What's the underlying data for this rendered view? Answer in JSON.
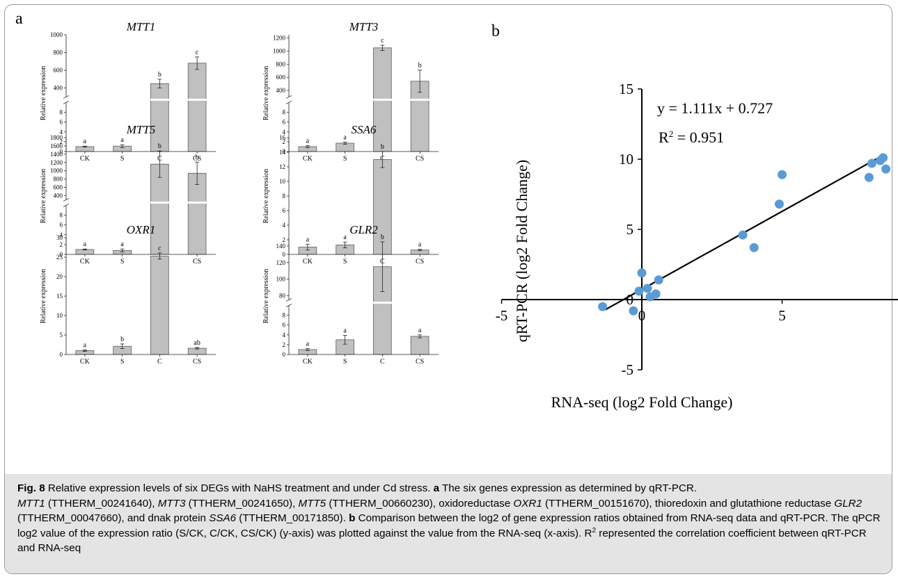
{
  "figure": {
    "panel_a_letter": "a",
    "panel_b_letter": "b"
  },
  "chart_data": [
    {
      "type": "bar",
      "title": "MTT1",
      "ylabel": "Relative expression",
      "categories": [
        "CK",
        "S",
        "C",
        "CS"
      ],
      "values": [
        1,
        1.1,
        450,
        680
      ],
      "errors": [
        0.1,
        0.3,
        50,
        70
      ],
      "letters": [
        "a",
        "a",
        "b",
        "c"
      ],
      "axis_break": true,
      "ylim_low": [
        0,
        10
      ],
      "ylim_high": [
        300,
        1000
      ],
      "yticks_low": [
        "0",
        "2",
        "4",
        "6",
        "8"
      ],
      "yticks_high": [
        "400",
        "600",
        "800",
        "1000"
      ],
      "ytick_vals_low": [
        0,
        2,
        4,
        6,
        8
      ],
      "ytick_vals_high": [
        400,
        600,
        800,
        1000
      ]
    },
    {
      "type": "bar",
      "title": "MTT3",
      "ylabel": "Relative expression",
      "categories": [
        "CK",
        "S",
        "C",
        "CS"
      ],
      "values": [
        1,
        1.7,
        1050,
        540
      ],
      "errors": [
        0.2,
        0.2,
        40,
        170
      ],
      "letters": [
        "a",
        "a",
        "c",
        "b"
      ],
      "axis_break": true,
      "ylim_low": [
        0,
        10
      ],
      "ylim_high": [
        300,
        1250
      ],
      "yticks_low": [
        "0",
        "2",
        "4",
        "6",
        "8"
      ],
      "yticks_high": [
        "400",
        "600",
        "800",
        "1000",
        "1200"
      ],
      "ytick_vals_low": [
        0,
        2,
        4,
        6,
        8
      ],
      "ytick_vals_high": [
        400,
        600,
        800,
        1000,
        1200
      ]
    },
    {
      "type": "bar",
      "title": "MTT5",
      "ylabel": "Relative expression",
      "categories": [
        "CK",
        "S",
        "C",
        "CS"
      ],
      "values": [
        1,
        0.8,
        1160,
        940
      ],
      "errors": [
        0.1,
        0.3,
        320,
        270
      ],
      "letters": [
        "a",
        "a",
        "b",
        "b"
      ],
      "axis_break": true,
      "ylim_low": [
        0,
        10
      ],
      "ylim_high": [
        300,
        1800
      ],
      "yticks_low": [
        "0",
        "2",
        "4",
        "6",
        "8"
      ],
      "yticks_high": [
        "400",
        "600",
        "800",
        "1000",
        "1200",
        "1400",
        "1600",
        "1800"
      ],
      "ytick_vals_low": [
        0,
        2,
        4,
        6,
        8
      ],
      "ytick_vals_high": [
        400,
        600,
        800,
        1000,
        1200,
        1400,
        1600,
        1800
      ]
    },
    {
      "type": "bar",
      "title": "SSA6",
      "ylabel": "Relative expression",
      "categories": [
        "CK",
        "S",
        "C",
        "CS"
      ],
      "values": [
        1,
        1.3,
        13,
        0.6
      ],
      "errors": [
        0.4,
        0.4,
        1.1,
        0.1
      ],
      "letters": [
        "a",
        "a",
        "b",
        "a"
      ],
      "axis_break": false,
      "ylim": [
        0,
        16
      ],
      "yticks": [
        "0",
        "2",
        "4",
        "6",
        "8",
        "10",
        "12",
        "14",
        "16"
      ],
      "ytick_vals": [
        0,
        2,
        4,
        6,
        8,
        10,
        12,
        14,
        16
      ]
    },
    {
      "type": "bar",
      "title": "OXR1",
      "ylabel": "Relative expression",
      "categories": [
        "CK",
        "S",
        "C",
        "CS"
      ],
      "values": [
        1,
        2.1,
        25.3,
        1.6
      ],
      "errors": [
        0.2,
        0.6,
        0.8,
        0.2
      ],
      "letters": [
        "a",
        "b",
        "c",
        "ab"
      ],
      "axis_break": false,
      "ylim": [
        0,
        30
      ],
      "yticks": [
        "0",
        "5",
        "10",
        "15",
        "20",
        "25",
        "30"
      ],
      "ytick_vals": [
        0,
        5,
        10,
        15,
        20,
        25,
        30
      ]
    },
    {
      "type": "bar",
      "title": "GLR2",
      "ylabel": "Relative expression",
      "categories": [
        "CK",
        "S",
        "C",
        "CS"
      ],
      "values": [
        1,
        3,
        115,
        3.7
      ],
      "errors": [
        0.2,
        0.9,
        30,
        0.3
      ],
      "letters": [
        "a",
        "a",
        "b",
        "a"
      ],
      "axis_break": true,
      "ylim_low": [
        0,
        10
      ],
      "ylim_high": [
        75,
        150
      ],
      "yticks_low": [
        "0",
        "2",
        "4",
        "6",
        "8"
      ],
      "yticks_high": [
        "80",
        "100",
        "120",
        "140"
      ],
      "ytick_vals_low": [
        0,
        2,
        4,
        6,
        8
      ],
      "ytick_vals_high": [
        80,
        100,
        120,
        140
      ]
    },
    {
      "type": "scatter",
      "xlabel": "RNA-seq (log2 Fold Change)",
      "ylabel": "qRT-PCR (log2 Fold Change)",
      "xlim": [
        -5,
        10
      ],
      "ylim": [
        -5,
        15
      ],
      "xticks": [
        "-5",
        "0",
        "5",
        "10"
      ],
      "xtick_vals": [
        -5,
        0,
        5,
        10
      ],
      "yticks": [
        "-5",
        "0",
        "5",
        "10",
        "15"
      ],
      "ytick_vals": [
        -5,
        0,
        5,
        10,
        15
      ],
      "points": [
        {
          "x": -1.4,
          "y": -0.5
        },
        {
          "x": -0.3,
          "y": -0.8
        },
        {
          "x": -0.1,
          "y": 0.6
        },
        {
          "x": 0.0,
          "y": 1.9
        },
        {
          "x": 0.2,
          "y": 0.8
        },
        {
          "x": 0.3,
          "y": 0.2
        },
        {
          "x": 0.5,
          "y": 0.4
        },
        {
          "x": 0.6,
          "y": 1.4
        },
        {
          "x": 3.6,
          "y": 4.6
        },
        {
          "x": 4.0,
          "y": 3.7
        },
        {
          "x": 4.9,
          "y": 6.8
        },
        {
          "x": 5.0,
          "y": 8.9
        },
        {
          "x": 8.1,
          "y": 8.7
        },
        {
          "x": 8.2,
          "y": 9.7
        },
        {
          "x": 8.5,
          "y": 9.9
        },
        {
          "x": 8.6,
          "y": 10.1
        },
        {
          "x": 8.7,
          "y": 9.3
        }
      ],
      "fit": {
        "slope": 1.111,
        "intercept": 0.727,
        "x_from": -1.3,
        "x_to": 8.4
      },
      "equation": "y = 1.111x + 0.727",
      "r2_label": "R",
      "r2_sup": "2",
      "r2_value": " = 0.951",
      "point_color": "#5b9bd5"
    }
  ],
  "caption": {
    "fig_label": "Fig. 8",
    "t1": " Relative expression levels of six DEGs with NaHS treatment and under Cd stress. ",
    "a": "a",
    "t2": " The six genes expression as determined by qRT-PCR.",
    "g1": "MTT1",
    "t3": " (TTHERM_00241640), ",
    "g2": "MTT3",
    "t4": " (TTHERM_00241650), ",
    "g3": "MTT5",
    "t5": " (TTHERM_00660230), oxidoreductase ",
    "g4": "OXR1",
    "t6": " (TTHERM_00151670), thioredoxin and glutathione reductase ",
    "g5": "GLR2",
    "t7": " (TTHERM_00047660), and dnak protein ",
    "g6": "SSA6",
    "t8": " (TTHERM_00171850). ",
    "b": "b",
    "t9": " Comparison between the log2 of gene expression ratios obtained from RNA-seq data and qRT-PCR. The qPCR log2 value of the expression ratio (S/CK, C/CK, CS/CK) (y-axis) was plotted against the value from the RNA-seq (x-axis). R",
    "sup": "2",
    "t10": " represented the correlation coefficient between qRT-PCR and RNA-seq"
  }
}
